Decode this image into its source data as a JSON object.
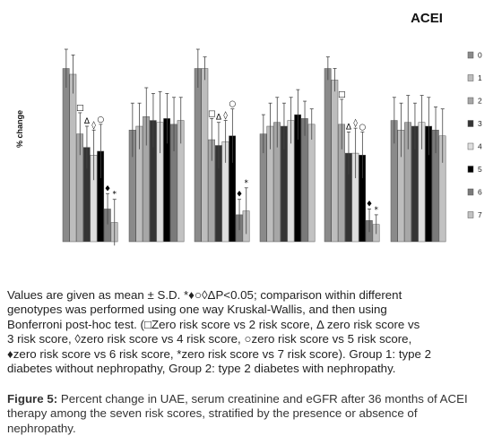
{
  "chart_data": {
    "type": "bar",
    "title": "ACEI",
    "ylabel": "% change",
    "ylim": [
      0,
      100
    ],
    "grid": false,
    "legend": "right",
    "legend_labels": [
      "0",
      "1",
      "2",
      "3",
      "4",
      "5",
      "6",
      "7"
    ],
    "series_colors": [
      "#8a8a8a",
      "#bdbdbd",
      "#a7a7a7",
      "#343434",
      "#dedede",
      "#000000",
      "#7a7a7a",
      "#c2c2c2"
    ],
    "groups": [
      {
        "values": [
          90,
          87,
          56,
          49,
          45,
          47,
          17,
          10
        ],
        "errors": [
          10,
          10,
          11,
          11,
          13,
          14,
          8,
          12
        ],
        "annotations": [
          "",
          "",
          "□",
          "Δ",
          "◊",
          "○",
          "♦",
          "*"
        ]
      },
      {
        "values": [
          58,
          60,
          65,
          63,
          62,
          64,
          61,
          63
        ],
        "errors": [
          14,
          12,
          15,
          14,
          16,
          13,
          14,
          12
        ],
        "annotations": [
          "",
          "",
          "",
          "",
          "",
          "",
          "",
          ""
        ]
      },
      {
        "values": [
          90,
          90,
          53,
          50,
          52,
          55,
          14,
          16
        ],
        "errors": [
          10,
          6,
          11,
          12,
          11,
          14,
          8,
          12
        ],
        "annotations": [
          "",
          "",
          "□",
          "Δ",
          "◊",
          "○",
          "♦",
          "*"
        ]
      },
      {
        "values": [
          56,
          60,
          62,
          60,
          63,
          66,
          64,
          61
        ],
        "errors": [
          10,
          12,
          13,
          12,
          12,
          13,
          9,
          8
        ],
        "annotations": [
          "",
          "",
          "",
          "",
          "",
          "",
          "",
          ""
        ]
      },
      {
        "values": [
          90,
          84,
          61,
          46,
          46,
          45,
          11,
          9
        ],
        "errors": [
          6,
          6,
          13,
          11,
          13,
          12,
          6,
          5
        ],
        "annotations": [
          "",
          "",
          "□",
          "Δ",
          "◊",
          "○",
          "♦",
          "*"
        ]
      },
      {
        "values": [
          63,
          58,
          62,
          60,
          62,
          60,
          58,
          55
        ],
        "errors": [
          12,
          14,
          14,
          12,
          14,
          15,
          12,
          14
        ],
        "annotations": [
          "",
          "",
          "",
          "",
          "",
          "",
          "",
          ""
        ]
      }
    ]
  },
  "notes": {
    "lines": [
      "Values are given as mean ± S.D. *♦○◊ΔP<0.05; comparison within different",
      "genotypes was performed using one way Kruskal-Wallis, and then using",
      "Bonferroni post-hoc test. (□Zero risk score vs 2 risk score, Δ zero risk score vs",
      "3 risk score, ◊zero risk score vs 4 risk score, ○zero risk score vs 5 risk score,",
      "♦zero risk score vs 6 risk score, *zero risk score vs 7 risk score).  Group 1: type 2",
      "diabetes without nephropathy, Group 2: type 2 diabetes with nephropathy."
    ]
  },
  "figure_caption": {
    "label": "Figure 5:",
    "text": " Percent change in UAE, serum creatinine and eGFR after 36 months of ACEI therapy among the seven risk scores, stratified by the presence or absence of nephropathy."
  }
}
